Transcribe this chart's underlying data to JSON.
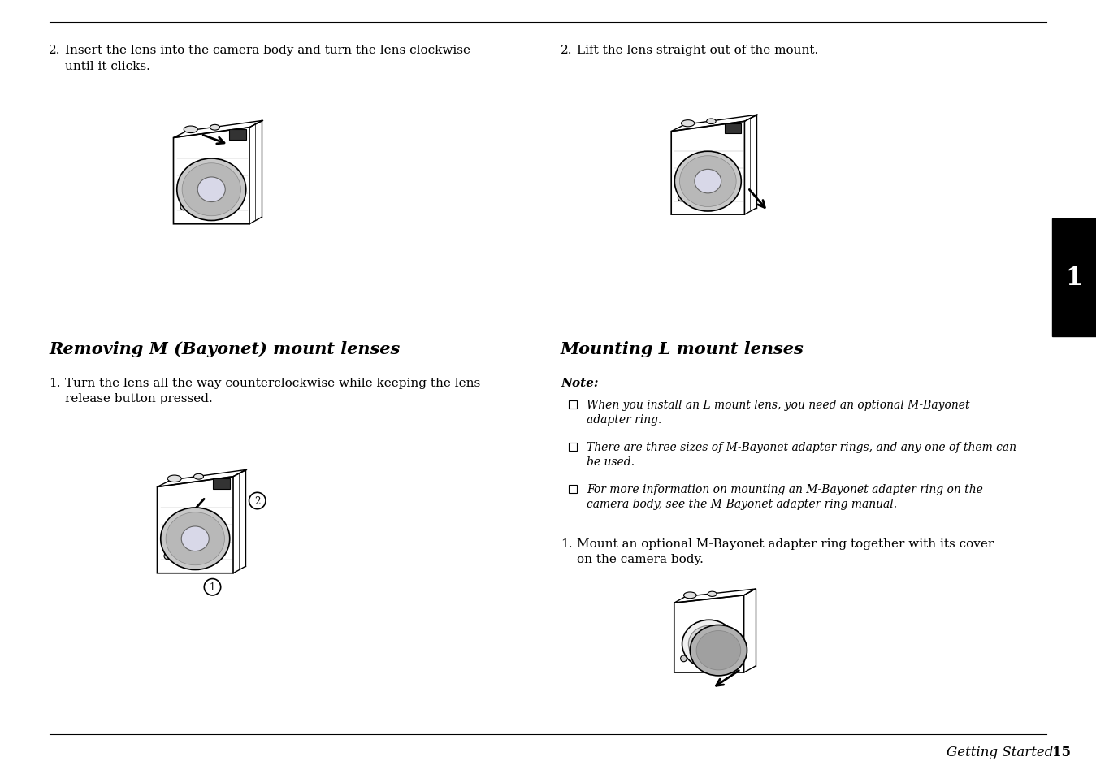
{
  "bg_color": "#ffffff",
  "text_color": "#000000",
  "tab_color": "#000000",
  "tab_text_color": "#ffffff",
  "footer_right_italic": "Getting Started",
  "footer_page": "15",
  "tab_number": "1",
  "left_col": {
    "step2_label": "2.",
    "step2_text": "Insert the lens into the camera body and turn the lens clockwise\nuntil it clicks.",
    "section_title": "Removing M (Bayonet) mount lenses",
    "step1_label": "1.",
    "step1_text": "Turn the lens all the way counterclockwise while keeping the lens\nrelease button pressed."
  },
  "right_col": {
    "step2_label": "2.",
    "step2_text": "Lift the lens straight out of the mount.",
    "section_title": "Mounting L mount lenses",
    "note_label": "Note:",
    "note_items": [
      "When you install an L mount lens, you need an optional M-Bayonet\nadapter ring.",
      "There are three sizes of M-Bayonet adapter rings, and any one of them can\nbe used.",
      "For more information on mounting an M-Bayonet adapter ring on the\ncamera body, see the M-Bayonet adapter ring manual."
    ],
    "step1_label": "1.",
    "step1_text": "Mount an optional M-Bayonet adapter ring together with its cover\non the camera body."
  }
}
